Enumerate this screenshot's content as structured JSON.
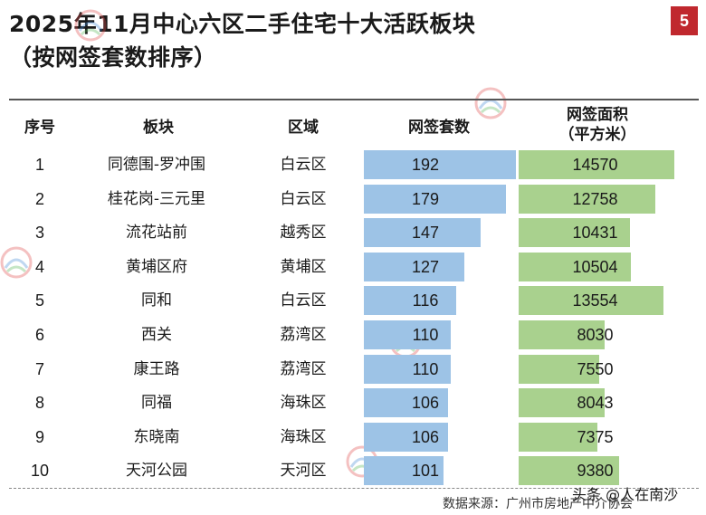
{
  "page_badge": "5",
  "title_line1": "2025年11月中心六区二手住宅十大活跃板块",
  "title_line2": "（按网签套数排序）",
  "headers": {
    "rank": "序号",
    "block": "板块",
    "district": "区域",
    "units": "网签套数",
    "area_line1": "网签面积",
    "area_line2": "（平方米）"
  },
  "colors": {
    "units_bar": "#9dc3e6",
    "area_bar": "#a9d18e",
    "badge": "#c0282e"
  },
  "chart_data": {
    "type": "table",
    "columns": [
      "序号",
      "板块",
      "区域",
      "网签套数",
      "网签面积（平方米）"
    ],
    "rows": [
      {
        "rank": "1",
        "block": "同德围-罗冲围",
        "district": "白云区",
        "units": 192,
        "area": 14570
      },
      {
        "rank": "2",
        "block": "桂花岗-三元里",
        "district": "白云区",
        "units": 179,
        "area": 12758
      },
      {
        "rank": "3",
        "block": "流花站前",
        "district": "越秀区",
        "units": 147,
        "area": 10431
      },
      {
        "rank": "4",
        "block": "黄埔区府",
        "district": "黄埔区",
        "units": 127,
        "area": 10504
      },
      {
        "rank": "5",
        "block": "同和",
        "district": "白云区",
        "units": 116,
        "area": 13554
      },
      {
        "rank": "6",
        "block": "西关",
        "district": "荔湾区",
        "units": 110,
        "area": 8030
      },
      {
        "rank": "7",
        "block": "康王路",
        "district": "荔湾区",
        "units": 110,
        "area": 7550
      },
      {
        "rank": "8",
        "block": "同福",
        "district": "海珠区",
        "units": 106,
        "area": 8043
      },
      {
        "rank": "9",
        "block": "东晓南",
        "district": "海珠区",
        "units": 106,
        "area": 7375
      },
      {
        "rank": "10",
        "block": "天河公园",
        "district": "天河区",
        "units": 101,
        "area": 9380
      }
    ],
    "units_max": 192,
    "area_max": 14570
  },
  "footer": {
    "source": "数据来源：广州市房地产中介协会",
    "credit": "头条 @人在南沙"
  },
  "watermark_text": "广州市房地产中介协会"
}
